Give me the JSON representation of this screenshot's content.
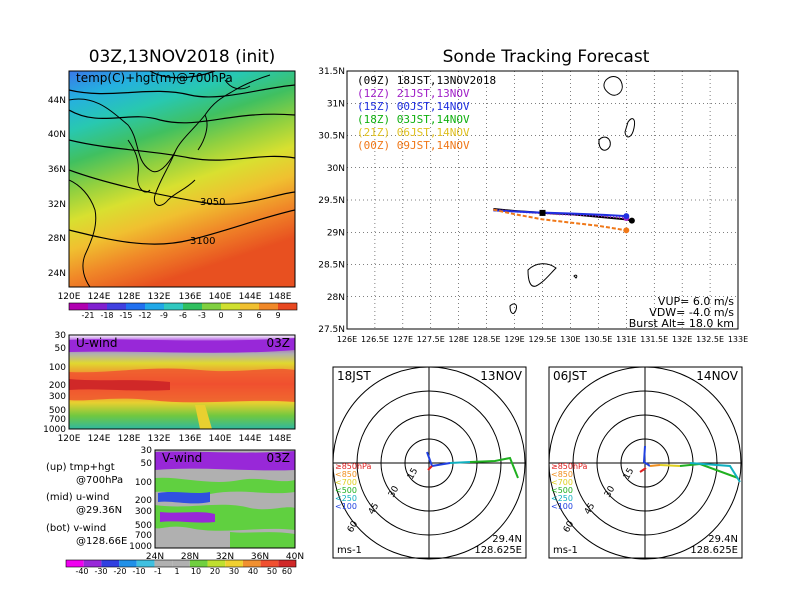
{
  "map_panel": {
    "title": "03Z,13NOV2018 (init)",
    "subtitle": "temp(C)+hgt(m)@700hPa",
    "lat_labels": [
      "44N",
      "40N",
      "36N",
      "32N",
      "28N",
      "24N"
    ],
    "lon_labels": [
      "120E",
      "124E",
      "128E",
      "132E",
      "136E",
      "140E",
      "144E",
      "148E"
    ],
    "contour_labels": [
      "3050",
      "3100"
    ],
    "colorbar_labels": [
      "-21",
      "-18",
      "-15",
      "-12",
      "-9",
      "-6",
      "-3",
      "0",
      "3",
      "6",
      "9"
    ]
  },
  "uwind_panel": {
    "title": "U-wind",
    "time": "03Z",
    "p_labels": [
      "30",
      "50",
      "100",
      "200",
      "300",
      "500",
      "700",
      "1000"
    ],
    "lon_labels": [
      "120E",
      "124E",
      "128E",
      "132E",
      "136E",
      "140E",
      "144E",
      "148E"
    ]
  },
  "vwind_panel": {
    "title": "V-wind",
    "time": "03Z",
    "p_labels": [
      "30",
      "50",
      "100",
      "200",
      "300",
      "500",
      "700",
      "1000"
    ],
    "lat_labels": [
      "24N",
      "28N",
      "32N",
      "36N",
      "40N"
    ],
    "colorbar_labels": [
      "-40",
      "-30",
      "-20",
      "-10",
      "-1",
      "1",
      "10",
      "20",
      "30",
      "40",
      "50",
      "60"
    ]
  },
  "notes": {
    "line1a": "(up) tmp+hgt",
    "line1b": "@700hPa",
    "line2a": "(mid) u-wind",
    "line2b": "@29.36N",
    "line3a": "(bot) v-wind",
    "line3b": "@128.66E"
  },
  "tracking": {
    "title": "Sonde Tracking Forecast",
    "legend": [
      {
        "text": "(09Z)  18JST,13NOV2018",
        "color": "#000000"
      },
      {
        "text": "(12Z)  21JST,13NOV",
        "color": "#a020c8"
      },
      {
        "text": "(15Z)  00JST,14NOV",
        "color": "#2030e0"
      },
      {
        "text": "(18Z)  03JST,14NOV",
        "color": "#10b010"
      },
      {
        "text": "(21Z)  06JST,14NOV",
        "color": "#e0c020"
      },
      {
        "text": "(00Z)  09JST,14NOV",
        "color": "#f07818"
      }
    ],
    "info": [
      "VUP=  6.0 m/s",
      "VDW= -4.0 m/s",
      "Burst Alt=  18.0 km"
    ]
  },
  "hodo_left": {
    "time": "18JST",
    "date": "13NOV",
    "lat": "29.4N",
    "lon": "128.625E",
    "unit": "ms-1",
    "rings": [
      "15",
      "30",
      "45",
      "60"
    ],
    "levels": [
      {
        "text": "≥850hPa",
        "color": "#e02020"
      },
      {
        "text": "<850",
        "color": "#f09020"
      },
      {
        "text": "<700",
        "color": "#e0d020"
      },
      {
        "text": "<500",
        "color": "#20b020"
      },
      {
        "text": "<250",
        "color": "#10b0c0"
      },
      {
        "text": "<100",
        "color": "#2040e0"
      }
    ]
  },
  "hodo_right": {
    "time": "06JST",
    "date": "14NOV",
    "lat": "29.4N",
    "lon": "128.625E",
    "unit": "ms-1",
    "rings": [
      "15",
      "30",
      "45",
      "60"
    ],
    "levels": [
      {
        "text": "≥850hPa",
        "color": "#e02020"
      },
      {
        "text": "<850",
        "color": "#f09020"
      },
      {
        "text": "<700",
        "color": "#e0d020"
      },
      {
        "text": "<500",
        "color": "#20b020"
      },
      {
        "text": "<250",
        "color": "#10b0c0"
      },
      {
        "text": "<100",
        "color": "#2040e0"
      }
    ]
  },
  "chart_data": [
    {
      "type": "heatmap",
      "title": "temp(C)+hgt(m)@700hPa",
      "xlim": [
        120,
        150
      ],
      "ylim": [
        22,
        48
      ],
      "x_ticks": [
        "120E",
        "124E",
        "128E",
        "132E",
        "136E",
        "140E",
        "144E",
        "148E"
      ],
      "y_ticks": [
        "24N",
        "28N",
        "32N",
        "36N",
        "40N",
        "44N"
      ],
      "contours": [
        3050,
        3100
      ],
      "colorbar": [
        -21,
        -18,
        -15,
        -12,
        -9,
        -6,
        -3,
        0,
        3,
        6,
        9
      ]
    },
    {
      "type": "heatmap",
      "title": "U-wind",
      "x_ticks": [
        "120E",
        "124E",
        "128E",
        "132E",
        "136E",
        "140E",
        "144E",
        "148E"
      ],
      "y_ticks": [
        30,
        50,
        100,
        200,
        300,
        500,
        700,
        1000
      ]
    },
    {
      "type": "heatmap",
      "title": "V-wind",
      "x_ticks": [
        "24N",
        "28N",
        "32N",
        "36N",
        "40N"
      ],
      "y_ticks": [
        30,
        50,
        100,
        200,
        300,
        500,
        700,
        1000
      ],
      "colorbar": [
        -40,
        -30,
        -20,
        -10,
        -1,
        1,
        10,
        20,
        30,
        40,
        50,
        60
      ]
    },
    {
      "type": "line",
      "title": "Sonde Tracking Forecast",
      "xlim": [
        126,
        133
      ],
      "ylim": [
        27.5,
        31.5
      ],
      "x_ticks": [
        "126E",
        "126.5E",
        "127E",
        "127.5E",
        "128E",
        "128.5E",
        "129E",
        "129.5E",
        "130E",
        "130.5E",
        "131E",
        "131.5E",
        "132E",
        "132.5E",
        "133E"
      ],
      "y_ticks": [
        "27.5N",
        "28N",
        "28.5N",
        "29N",
        "29.5N",
        "30N",
        "30.5N",
        "31N",
        "31.5N"
      ],
      "series": [
        {
          "name": "(09Z)  18JST,13NOV2018",
          "color": "#000000",
          "x": [
            128.62,
            129.0,
            129.5,
            130.0,
            130.5,
            131.0,
            131.1
          ],
          "y": [
            29.36,
            29.33,
            29.3,
            29.28,
            29.24,
            29.2,
            29.18
          ]
        },
        {
          "name": "(12Z)  21JST,13NOV",
          "color": "#a020c8",
          "x": [
            128.62,
            129.2,
            129.8,
            130.4,
            131.0
          ],
          "y": [
            29.35,
            29.31,
            29.28,
            29.26,
            29.22
          ]
        },
        {
          "name": "(15Z)  00JST,14NOV",
          "color": "#2030e0",
          "x": [
            128.62,
            129.3,
            130.0,
            130.6,
            131.0
          ],
          "y": [
            29.34,
            29.31,
            29.29,
            29.27,
            29.25
          ]
        },
        {
          "name": "(00Z)  09JST,14NOV",
          "color": "#f07818",
          "x": [
            128.62,
            129.0,
            129.5,
            130.0,
            130.5,
            131.0
          ],
          "y": [
            29.35,
            29.28,
            29.2,
            29.15,
            29.1,
            29.03
          ]
        }
      ]
    }
  ]
}
